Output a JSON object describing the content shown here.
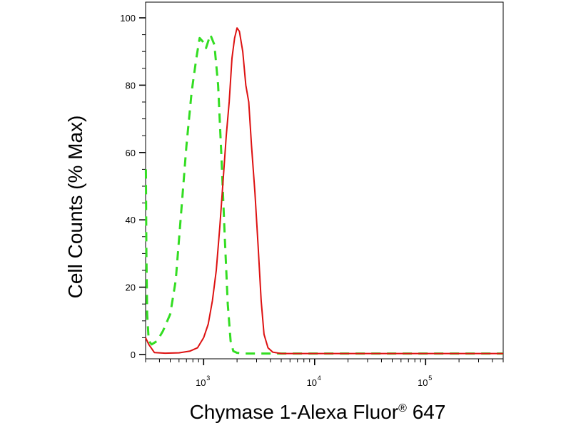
{
  "chart_data": {
    "type": "line",
    "xscale": "log",
    "xlim": [
      300,
      500000
    ],
    "ylim": [
      0,
      100
    ],
    "yticks": [
      0,
      20,
      40,
      60,
      80,
      100
    ],
    "yticks_labels": [
      "0",
      "20",
      "40",
      "60",
      "80",
      "100"
    ],
    "xticks": [
      {
        "value": 1000,
        "base": "10",
        "exp": "3"
      },
      {
        "value": 10000,
        "base": "10",
        "exp": "4"
      },
      {
        "value": 100000,
        "base": "10",
        "exp": "5"
      }
    ],
    "xlabel_main": "Chymase 1-Alexa Fluor",
    "xlabel_reg": "®",
    "xlabel_suffix": " 647",
    "ylabel": "Cell Counts (% Max)",
    "grid": false,
    "series": [
      {
        "color": "#33dd22",
        "style": "dashed",
        "points": [
          [
            302,
            55
          ],
          [
            305,
            30
          ],
          [
            310,
            12
          ],
          [
            320,
            4
          ],
          [
            340,
            3
          ],
          [
            380,
            4
          ],
          [
            430,
            7
          ],
          [
            500,
            12
          ],
          [
            560,
            22
          ],
          [
            620,
            40
          ],
          [
            700,
            62
          ],
          [
            780,
            78
          ],
          [
            860,
            88
          ],
          [
            920,
            94
          ],
          [
            980,
            93
          ],
          [
            1050,
            91
          ],
          [
            1150,
            95
          ],
          [
            1250,
            92
          ],
          [
            1350,
            80
          ],
          [
            1450,
            58
          ],
          [
            1550,
            35
          ],
          [
            1650,
            15
          ],
          [
            1750,
            4
          ],
          [
            1850,
            1
          ],
          [
            2000,
            0.5
          ],
          [
            2300,
            0.3
          ],
          [
            3000,
            0.3
          ],
          [
            500000,
            0.3
          ]
        ]
      },
      {
        "color": "#dd1111",
        "style": "solid",
        "points": [
          [
            300,
            5
          ],
          [
            320,
            3
          ],
          [
            360,
            0.6
          ],
          [
            450,
            0.4
          ],
          [
            600,
            0.5
          ],
          [
            750,
            1
          ],
          [
            880,
            2
          ],
          [
            1000,
            5
          ],
          [
            1100,
            9
          ],
          [
            1200,
            16
          ],
          [
            1300,
            25
          ],
          [
            1400,
            38
          ],
          [
            1500,
            52
          ],
          [
            1600,
            65
          ],
          [
            1700,
            75
          ],
          [
            1800,
            88
          ],
          [
            1900,
            94
          ],
          [
            2000,
            97
          ],
          [
            2100,
            96
          ],
          [
            2250,
            90
          ],
          [
            2400,
            80
          ],
          [
            2550,
            75
          ],
          [
            2700,
            62
          ],
          [
            2900,
            48
          ],
          [
            3100,
            32
          ],
          [
            3300,
            16
          ],
          [
            3500,
            6
          ],
          [
            3800,
            2
          ],
          [
            4200,
            0.7
          ],
          [
            5000,
            0.3
          ],
          [
            500000,
            0.3
          ]
        ]
      }
    ]
  }
}
